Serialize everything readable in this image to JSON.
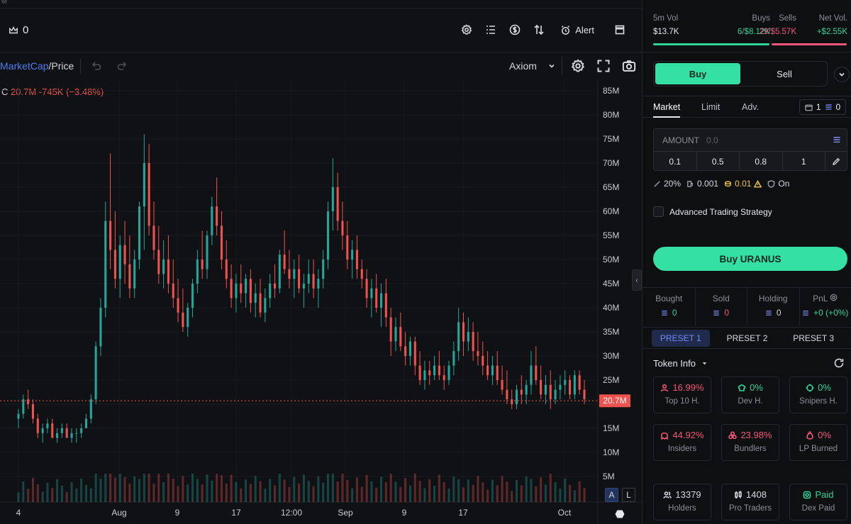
{
  "top_strip": {
    "label": "M"
  },
  "toolbar": {
    "crown_count": "0",
    "alert_label": "Alert"
  },
  "chart_header": {
    "mcap_label": "MarketCap",
    "price_label": "/Price",
    "source": "Axiom"
  },
  "legend": {
    "c_label": "C",
    "close": "20.7M",
    "change": "-745K (−3.48%)"
  },
  "axis_buttons": {
    "a": "A",
    "l": "L"
  },
  "chart_data": {
    "type": "candlestick",
    "y_ticks": [
      "85M",
      "80M",
      "75M",
      "70M",
      "65M",
      "60M",
      "55M",
      "50M",
      "45M",
      "40M",
      "35M",
      "30M",
      "25M",
      "20M",
      "15M",
      "10M",
      "5M"
    ],
    "ylim": [
      0,
      87
    ],
    "x_ticks": [
      "4",
      "Aug",
      "9",
      "17",
      "12:00",
      "Sep",
      "9",
      "17",
      "Oct"
    ],
    "last_price_label": "20.7M",
    "last_value": 20.7,
    "candles": [
      [
        17,
        19,
        15,
        18
      ],
      [
        18,
        22,
        17,
        21
      ],
      [
        21,
        23,
        19,
        20
      ],
      [
        20,
        21,
        16,
        17
      ],
      [
        17,
        18,
        13,
        14
      ],
      [
        14,
        16,
        12,
        15
      ],
      [
        15,
        17,
        14,
        16
      ],
      [
        16,
        17,
        13,
        13
      ],
      [
        13,
        15,
        12,
        14
      ],
      [
        14,
        16,
        13,
        15
      ],
      [
        15,
        16,
        13,
        13
      ],
      [
        13,
        15,
        12,
        14
      ],
      [
        14,
        15,
        12,
        14
      ],
      [
        14,
        16,
        13,
        15
      ],
      [
        15,
        18,
        15,
        17
      ],
      [
        17,
        22,
        16,
        21
      ],
      [
        21,
        33,
        20,
        32
      ],
      [
        32,
        42,
        30,
        40
      ],
      [
        40,
        62,
        38,
        58
      ],
      [
        58,
        72,
        48,
        52
      ],
      [
        52,
        60,
        44,
        46
      ],
      [
        46,
        55,
        42,
        53
      ],
      [
        53,
        58,
        45,
        49
      ],
      [
        49,
        55,
        42,
        44
      ],
      [
        44,
        52,
        42,
        50
      ],
      [
        50,
        62,
        48,
        61
      ],
      [
        61,
        76,
        52,
        70
      ],
      [
        70,
        74,
        55,
        57
      ],
      [
        57,
        62,
        50,
        52
      ],
      [
        52,
        57,
        45,
        47
      ],
      [
        47,
        54,
        44,
        50
      ],
      [
        50,
        55,
        43,
        45
      ],
      [
        45,
        50,
        40,
        42
      ],
      [
        42,
        46,
        37,
        39
      ],
      [
        39,
        44,
        35,
        36
      ],
      [
        36,
        41,
        34,
        40
      ],
      [
        40,
        46,
        38,
        45
      ],
      [
        45,
        52,
        43,
        50
      ],
      [
        50,
        56,
        46,
        48
      ],
      [
        48,
        56,
        46,
        55
      ],
      [
        55,
        63,
        53,
        61
      ],
      [
        61,
        67,
        55,
        57
      ],
      [
        57,
        60,
        48,
        50
      ],
      [
        50,
        54,
        44,
        46
      ],
      [
        46,
        49,
        40,
        42
      ],
      [
        42,
        47,
        39,
        45
      ],
      [
        45,
        49,
        41,
        43
      ],
      [
        43,
        47,
        40,
        46
      ],
      [
        46,
        48,
        39,
        41
      ],
      [
        41,
        45,
        38,
        43
      ],
      [
        43,
        46,
        38,
        39
      ],
      [
        39,
        44,
        37,
        42
      ],
      [
        42,
        47,
        40,
        45
      ],
      [
        45,
        49,
        42,
        44
      ],
      [
        44,
        52,
        43,
        51
      ],
      [
        51,
        56,
        47,
        48
      ],
      [
        48,
        52,
        44,
        46
      ],
      [
        46,
        50,
        42,
        48
      ],
      [
        48,
        51,
        43,
        44
      ],
      [
        44,
        47,
        40,
        45
      ],
      [
        45,
        50,
        43,
        47
      ],
      [
        47,
        50,
        42,
        44
      ],
      [
        44,
        48,
        40,
        46
      ],
      [
        46,
        52,
        44,
        50
      ],
      [
        50,
        62,
        48,
        60
      ],
      [
        60,
        71,
        56,
        65
      ],
      [
        65,
        68,
        56,
        58
      ],
      [
        58,
        62,
        52,
        55
      ],
      [
        55,
        58,
        48,
        50
      ],
      [
        50,
        54,
        46,
        52
      ],
      [
        52,
        55,
        46,
        48
      ],
      [
        48,
        50,
        44,
        46
      ],
      [
        46,
        48,
        40,
        42
      ],
      [
        42,
        46,
        38,
        44
      ],
      [
        44,
        47,
        39,
        40
      ],
      [
        40,
        45,
        36,
        43
      ],
      [
        43,
        46,
        36,
        38
      ],
      [
        38,
        40,
        30,
        33
      ],
      [
        33,
        38,
        31,
        36
      ],
      [
        36,
        39,
        31,
        32
      ],
      [
        32,
        35,
        28,
        30
      ],
      [
        30,
        34,
        28,
        33
      ],
      [
        33,
        34,
        26,
        28
      ],
      [
        28,
        31,
        24,
        25
      ],
      [
        25,
        29,
        23,
        27
      ],
      [
        27,
        29,
        24,
        26
      ],
      [
        26,
        30,
        25,
        28
      ],
      [
        28,
        31,
        25,
        26
      ],
      [
        26,
        28,
        23,
        25
      ],
      [
        25,
        29,
        24,
        28
      ],
      [
        28,
        33,
        26,
        31
      ],
      [
        31,
        40,
        29,
        37
      ],
      [
        37,
        39,
        30,
        33
      ],
      [
        33,
        38,
        31,
        35
      ],
      [
        35,
        37,
        29,
        31
      ],
      [
        31,
        35,
        28,
        30
      ],
      [
        30,
        33,
        26,
        28
      ],
      [
        28,
        31,
        25,
        26
      ],
      [
        26,
        30,
        24,
        28
      ],
      [
        28,
        31,
        24,
        25
      ],
      [
        25,
        28,
        22,
        23
      ],
      [
        23,
        27,
        20,
        21
      ],
      [
        21,
        23,
        19,
        20
      ],
      [
        20,
        24,
        19,
        23
      ],
      [
        23,
        26,
        20,
        22
      ],
      [
        22,
        25,
        20,
        24
      ],
      [
        24,
        31,
        22,
        28
      ],
      [
        28,
        32,
        24,
        25
      ],
      [
        25,
        28,
        21,
        22
      ],
      [
        22,
        26,
        20,
        24
      ],
      [
        24,
        27,
        19,
        21
      ],
      [
        21,
        25,
        20,
        23
      ],
      [
        23,
        26,
        21,
        24
      ],
      [
        24,
        27,
        22,
        25
      ],
      [
        25,
        26,
        21,
        22
      ],
      [
        22,
        27,
        21,
        26
      ],
      [
        26,
        27,
        22,
        23
      ],
      [
        23,
        25,
        20,
        21
      ]
    ]
  },
  "stats": {
    "vol_label": "5m Vol",
    "vol_value": "$13.7K",
    "buys_label": "Buys",
    "buys_count": "6",
    "buys_sep": "/",
    "buys_value": "$8.12K",
    "sells_label": "Sells",
    "sells_count": "29",
    "sells_sep": "/",
    "sells_value": "$5.57K",
    "net_label": "Net Vol.",
    "net_value": "+$2.55K",
    "colors": {
      "green": "#2fd49a",
      "red": "#f2557a"
    }
  },
  "trade": {
    "buy_tab": "Buy",
    "sell_tab": "Sell",
    "order_tabs": [
      "Market",
      "Limit",
      "Adv."
    ],
    "wallet_count": "1",
    "sol_count": "0",
    "amount_label": "AMOUNT",
    "amount_placeholder": "0.0",
    "quick_amounts": [
      "0.1",
      "0.5",
      "0.8",
      "1"
    ],
    "slippage": "20%",
    "priority": "0.001",
    "bribe": "0.01",
    "mev": "On",
    "advanced_label": "Advanced Trading Strategy",
    "buy_button": "Buy URANUS"
  },
  "positions": {
    "bought_label": "Bought",
    "bought_value": "0",
    "sold_label": "Sold",
    "sold_value": "0",
    "holding_label": "Holding",
    "holding_value": "0",
    "pnl_label": "PnL",
    "pnl_value": "+0 (+0%)"
  },
  "presets": [
    "PRESET 1",
    "PRESET 2",
    "PRESET 3"
  ],
  "token_info": {
    "title": "Token Info",
    "cards": [
      {
        "value": "16.99%",
        "label": "Top 10 H."
      },
      {
        "value": "0%",
        "label": "Dev H."
      },
      {
        "value": "0%",
        "label": "Snipers H."
      },
      {
        "value": "44.92%",
        "label": "Insiders"
      },
      {
        "value": "23.98%",
        "label": "Bundlers"
      },
      {
        "value": "0%",
        "label": "LP Burned"
      },
      {
        "value": "13379",
        "label": "Holders"
      },
      {
        "value": "1408",
        "label": "Pro Traders"
      },
      {
        "value": "Paid",
        "label": "Dex Paid"
      }
    ]
  }
}
